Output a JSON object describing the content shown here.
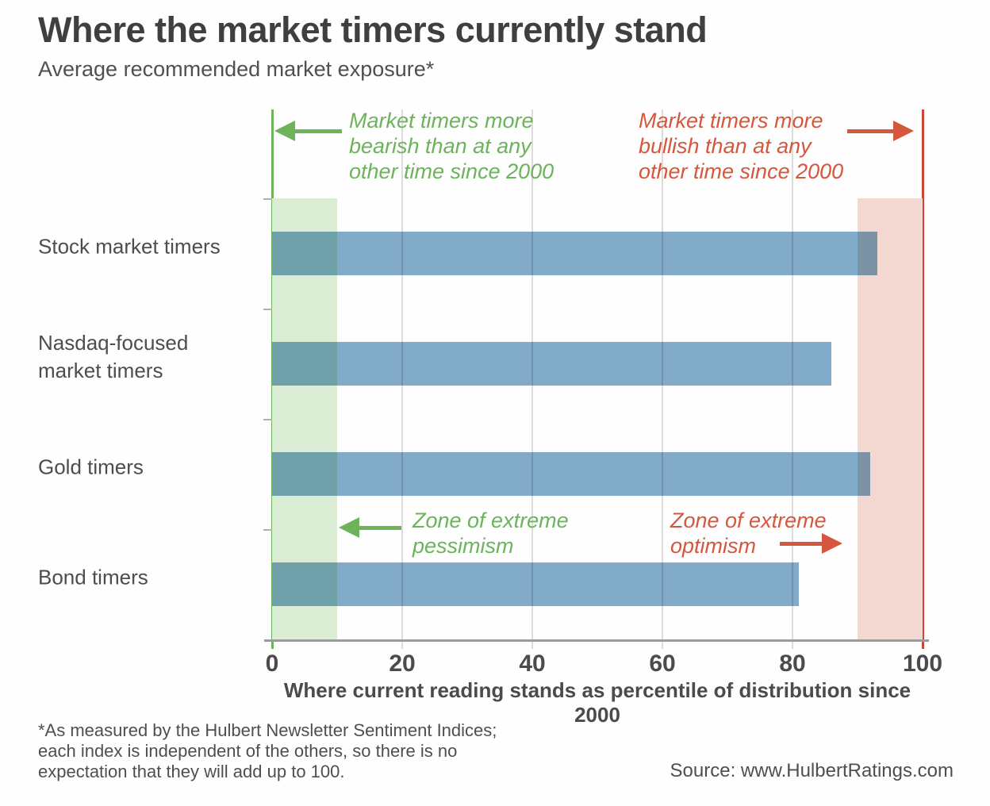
{
  "header": {
    "title": "Where the market timers currently stand",
    "subtitle": "Average recommended market exposure*"
  },
  "chart_data": {
    "type": "bar",
    "orientation": "horizontal",
    "title": "Where the market timers currently stand",
    "subtitle": "Average recommended market exposure*",
    "categories": [
      "Stock market timers",
      "Nasdaq-focused\nmarket timers",
      "Gold timers",
      "Bond timers"
    ],
    "values": [
      93,
      86,
      92,
      81
    ],
    "xlabel": "Where current reading stands as percentile of distribution since 2000",
    "xlim": [
      0,
      100
    ],
    "xticks": [
      0,
      20,
      40,
      60,
      80,
      100
    ],
    "grid": "vertical",
    "legend": "none",
    "zones": [
      {
        "name": "extreme-pessimism",
        "from": 0,
        "to": 10,
        "color": "#dcedd6"
      },
      {
        "name": "extreme-optimism",
        "from": 90,
        "to": 100,
        "color": "#f3d8d2"
      }
    ]
  },
  "annotations": {
    "bearish": "Market timers more\nbearish than at any\nother time since 2000",
    "bullish": "Market timers more\nbullish than at any\nother time since 2000",
    "pessimism": "Zone of extreme\npessimism",
    "optimism": "Zone of extreme\noptimism"
  },
  "footer": {
    "footnote": "*As measured by the Hulbert Newsletter Sentiment Indices;\neach index is independent of the others, so there is no\nexpectation that they will add up to 100.",
    "source": "Source: www.HulbertRatings.com"
  },
  "colors": {
    "bar": "#82acc9",
    "green": "#6cb35c",
    "red": "#d5573e",
    "red_line": "#cc4636",
    "zone_green": "#dcedd6",
    "zone_red": "#f3d8d2"
  }
}
